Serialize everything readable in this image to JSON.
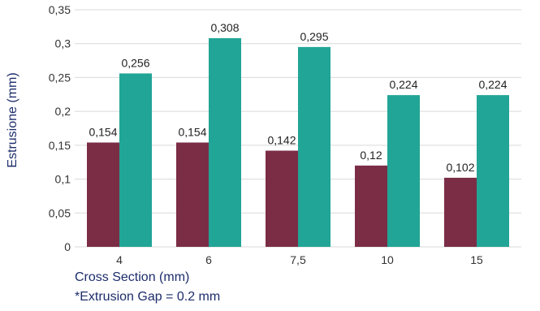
{
  "chart_data": {
    "type": "bar",
    "categories": [
      "4",
      "6",
      "7,5",
      "10",
      "15"
    ],
    "series": [
      {
        "color": "#7b2d46",
        "values": [
          0.154,
          0.154,
          0.142,
          0.12,
          0.102
        ],
        "labels": [
          "0,154",
          "0,154",
          "0,142",
          "0,12",
          "0,102"
        ]
      },
      {
        "color": "#21a596",
        "values": [
          0.256,
          0.308,
          0.295,
          0.224,
          0.224
        ],
        "labels": [
          "0,256",
          "0,308",
          "0,295",
          "0,224",
          "0,224"
        ]
      }
    ],
    "ylabel": "Estrusione (mm)",
    "xlabel": "Cross Section (mm)",
    "note": "*Extrusion Gap = 0.2 mm",
    "ylim": [
      0,
      0.35
    ],
    "yticks": [
      0,
      0.05,
      0.1,
      0.15,
      0.2,
      0.25,
      0.3,
      0.35
    ],
    "ytick_labels": [
      "0",
      "0,05",
      "0,1",
      "0,15",
      "0,2",
      "0,25",
      "0,3",
      "0,35"
    ],
    "grid": true,
    "colors": {
      "gridline": "#d9d9d9",
      "axis_title": "#1c2d6b"
    }
  }
}
